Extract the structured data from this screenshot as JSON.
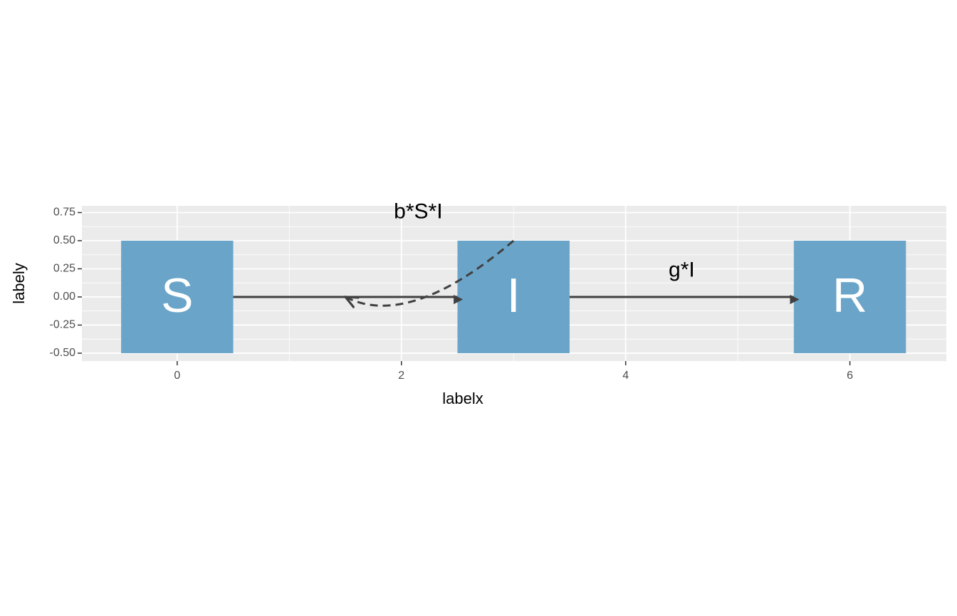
{
  "chart_data": {
    "type": "flow",
    "xlabel": "labelx",
    "ylabel": "labely",
    "xlim": [
      -0.85,
      6.86
    ],
    "ylim": [
      -0.57,
      0.81
    ],
    "xticks": [
      0,
      2,
      4,
      6
    ],
    "yticks": [
      {
        "value": 0.75,
        "label": "0.75"
      },
      {
        "value": 0.5,
        "label": "0.50"
      },
      {
        "value": 0.25,
        "label": "0.25"
      },
      {
        "value": 0,
        "label": "0.00"
      },
      {
        "value": -0.25,
        "label": "-0.25"
      },
      {
        "value": -0.5,
        "label": "-0.50"
      }
    ],
    "grid": true,
    "node_color": "#6aa5c9",
    "nodes": [
      {
        "label": "S",
        "xmin": -0.5,
        "xmax": 0.5,
        "ymin": -0.5,
        "ymax": 0.5
      },
      {
        "label": "I",
        "xmin": 2.5,
        "xmax": 3.5,
        "ymin": -0.5,
        "ymax": 0.5
      },
      {
        "label": "R",
        "xmin": 5.5,
        "xmax": 6.5,
        "ymin": -0.5,
        "ymax": 0.5
      }
    ],
    "flows": [
      {
        "x": [
          0.5,
          2.5
        ],
        "y": [
          0,
          0
        ],
        "linetype": "solid",
        "curved": false
      },
      {
        "x": [
          3.5,
          5.5
        ],
        "y": [
          0,
          0
        ],
        "linetype": "solid",
        "curved": false
      },
      {
        "x": [
          3,
          1.5
        ],
        "y": [
          0.5,
          0
        ],
        "linetype": "dashed",
        "curved": true
      }
    ],
    "flow_labels": [
      {
        "label": "b*S*I",
        "x": 2.15,
        "y": 0.75
      },
      {
        "label": "g*I",
        "x": 4.5,
        "y": 0.23
      }
    ]
  }
}
